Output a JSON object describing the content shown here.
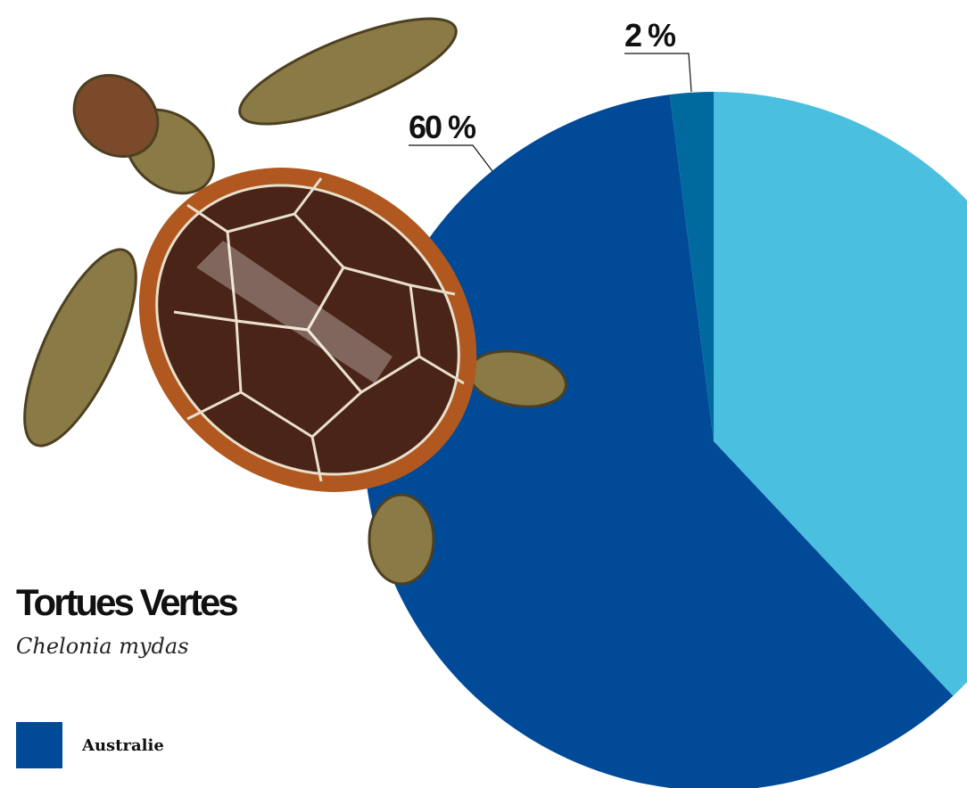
{
  "chart_data": {
    "type": "pie",
    "title": "Tortues Vertes",
    "subtitle": "Chelonia mydas",
    "categories": [
      null,
      "Australie",
      null
    ],
    "values": [
      38,
      60,
      2
    ],
    "value_labels": [
      null,
      "60 %",
      "2 %"
    ],
    "colors": [
      "#4bbfdf",
      "#004a98",
      "#00699e"
    ]
  }
}
